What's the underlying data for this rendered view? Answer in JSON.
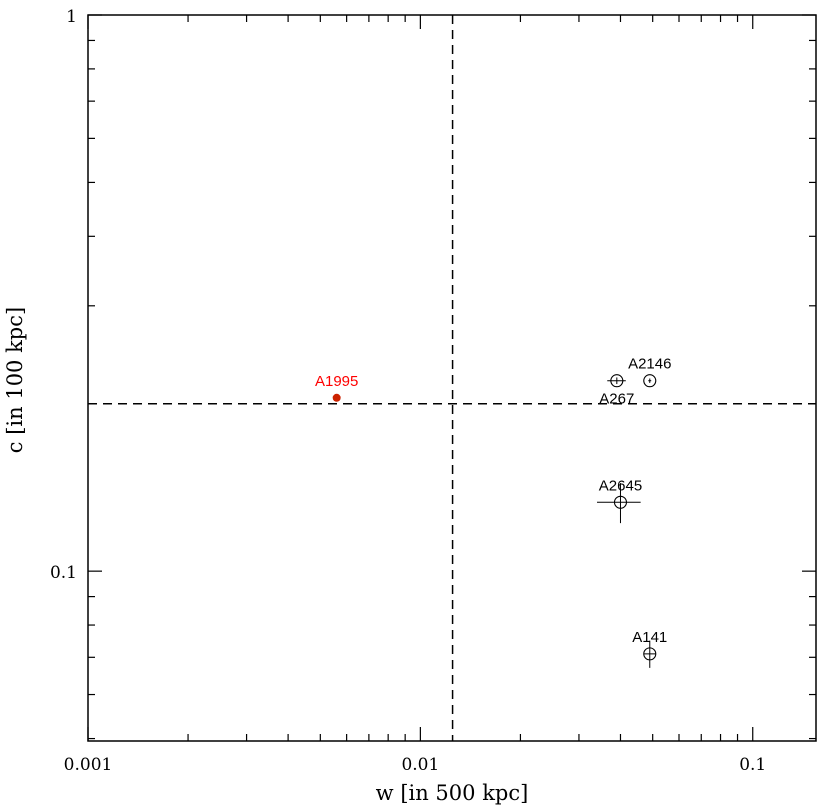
{
  "chart_data": {
    "type": "scatter",
    "xlabel": "w [in 500 kpc]",
    "ylabel": "c [in 100 kpc]",
    "xscale": "log",
    "yscale": "log",
    "xlim": [
      0.001,
      0.155
    ],
    "ylim": [
      0.0495,
      1.0
    ],
    "x_tick_labels": [
      {
        "value": 0.001,
        "label": "0.001"
      },
      {
        "value": 0.01,
        "label": "0.01"
      },
      {
        "value": 0.1,
        "label": "0.1"
      }
    ],
    "y_tick_labels": [
      {
        "value": 0.1,
        "label": "0.1"
      },
      {
        "value": 1.0,
        "label": "1"
      }
    ],
    "reference_lines": [
      {
        "orientation": "vertical",
        "value": 0.0125,
        "style": "dashed"
      },
      {
        "orientation": "horizontal",
        "value": 0.2,
        "style": "dashed"
      }
    ],
    "points": [
      {
        "label": "A1995",
        "x": 0.0056,
        "y": 0.205,
        "marker": "filled-circle",
        "color": "#cc2200",
        "label_color": "#ff0000",
        "label_pos": "above"
      },
      {
        "label": "A267",
        "x": 0.039,
        "y": 0.22,
        "marker": "open-circle",
        "label_pos": "below",
        "xerr": [
          0.0025,
          0.0025
        ],
        "yerr": [
          0.003,
          0.003
        ]
      },
      {
        "label": "A2146",
        "x": 0.049,
        "y": 0.22,
        "marker": "open-circle",
        "label_pos": "above",
        "xerr": [
          0.0005,
          0.0005
        ],
        "yerr": [
          0.002,
          0.002
        ]
      },
      {
        "label": "A2645",
        "x": 0.04,
        "y": 0.133,
        "marker": "open-circle",
        "label_pos": "above",
        "xerr": [
          0.006,
          0.006
        ],
        "yerr": [
          0.011,
          0.011
        ]
      },
      {
        "label": "A141",
        "x": 0.049,
        "y": 0.071,
        "marker": "open-circle",
        "label_pos": "above",
        "xerr": [
          0.002,
          0.002
        ],
        "yerr": [
          0.004,
          0.004
        ]
      }
    ]
  }
}
